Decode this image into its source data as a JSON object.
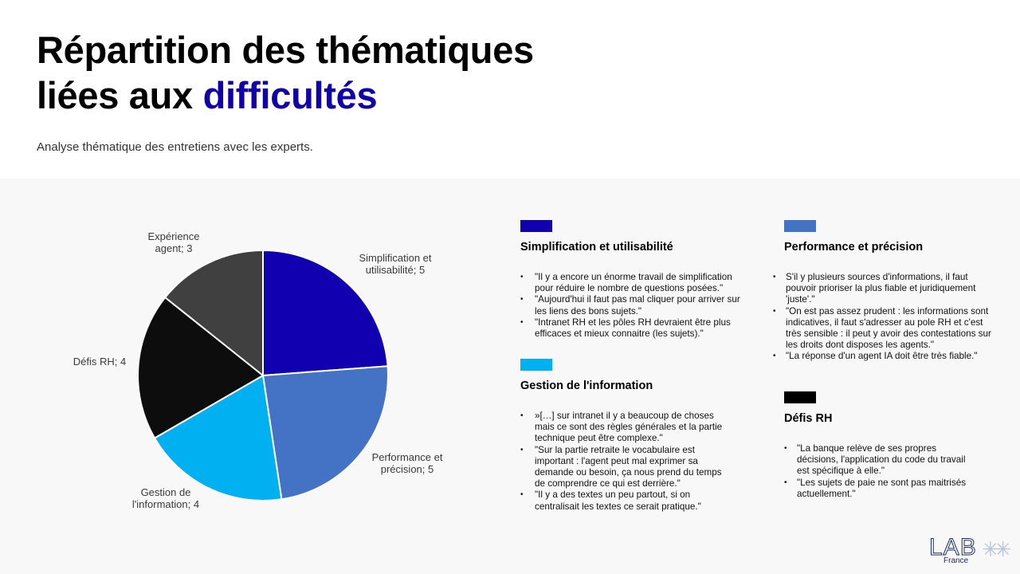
{
  "header": {
    "title_line1": "Répartition des thématiques",
    "title_line2_prefix": "liées aux ",
    "title_line2_accent": "difficultés",
    "subtitle": "Analyse thématique des entretiens avec les experts."
  },
  "chart_data": {
    "type": "pie",
    "categories": [
      "Simplification et utilisabilité",
      "Performance et précision",
      "Gestion de l'information",
      "Défis RH",
      "Expérience agent"
    ],
    "values": [
      5,
      5,
      4,
      4,
      3
    ],
    "colors": [
      "#1100b0",
      "#4472c4",
      "#00b0f0",
      "#0d0d0d",
      "#404040"
    ],
    "labels": [
      [
        "Simplification et",
        "utilisabilité; 5"
      ],
      [
        "Performance et",
        "précision; 5"
      ],
      [
        "Gestion de",
        "l'information; 4"
      ],
      [
        "Défis RH; 4"
      ],
      [
        "Expérience",
        "agent; 3"
      ]
    ],
    "legend": "none"
  },
  "themes": [
    {
      "id": "b1",
      "color": "#1100b0",
      "title": "Simplification et utilisabilité",
      "quotes": [
        "\"Il y a encore un énorme travail de simplification pour réduire le nombre de questions posées.\"",
        "\"Aujourd'hui il faut pas mal cliquer pour arriver sur les liens des bons sujets.\"",
        "\"Intranet RH et les pôles RH devraient être plus efficaces et mieux connaitre (les sujets).\""
      ]
    },
    {
      "id": "b2",
      "color": "#4472c4",
      "title": "Performance et précision",
      "quotes": [
        "S'il y plusieurs sources d'informations, il faut pouvoir prioriser la plus fiable et juridiquement 'juste'.\"",
        "\"On est pas assez prudent : les informations sont indicatives, il faut s'adresser au pole RH et c'est très sensible : il peut y avoir des contestations sur les droits dont disposes les agents.\"",
        "\"La réponse d'un agent IA doit être très fiable.\""
      ]
    },
    {
      "id": "b3",
      "color": "#00b0f0",
      "title": "Gestion de l'information",
      "quotes": [
        "»[…] sur intranet il y a beaucoup de choses mais ce sont des règles générales et la partie technique peut être complexe.\"",
        "\"Sur la partie retraite le vocabulaire est important : l'agent peut mal exprimer sa demande ou besoin, ça nous prend du temps de comprendre ce qui est derrière.\"",
        "\"Il y a des textes un peu partout, si on centralisait les textes ce serait pratique.\""
      ]
    },
    {
      "id": "b4",
      "color": "#000000",
      "title": "Défis RH",
      "quotes": [
        "\"La banque relève de ses propres décisions, l'application du code du travail est spécifique à elle.\"",
        "\"Les sujets de paie ne sont pas maitrisés actuellement.\""
      ]
    }
  ],
  "logo": {
    "main": "LAB",
    "sub": "France"
  }
}
